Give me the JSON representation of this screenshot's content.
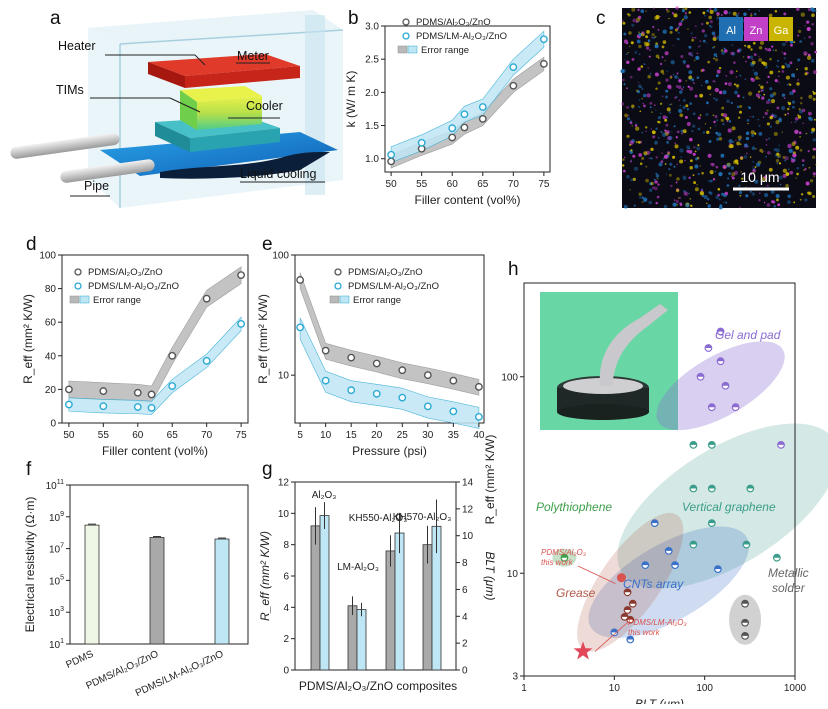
{
  "panels": {
    "a": {
      "letter": "a",
      "labels": {
        "heater": "Heater",
        "meter": "Meter",
        "tims": "TIMs",
        "cooler": "Cooler",
        "liquid": "Liquid cooling",
        "pipe": "Pipe"
      }
    },
    "b": {
      "letter": "b"
    },
    "c": {
      "letter": "c",
      "elements": [
        "Al",
        "Zn",
        "Ga"
      ],
      "element_colors": [
        "#1f6fb2",
        "#c23fc7",
        "#c9b400"
      ],
      "scalebar": "10 μm"
    },
    "d": {
      "letter": "d"
    },
    "e": {
      "letter": "e"
    },
    "f": {
      "letter": "f"
    },
    "g": {
      "letter": "g",
      "xlabel": "PDMS/Al₂O₃/ZnO composites"
    },
    "h": {
      "letter": "h"
    }
  },
  "colors": {
    "gray": "#8c8c8c",
    "cyan": "#2aa9d2",
    "gray_band": "#b9b9b9",
    "cyan_band": "#bfe6f4"
  },
  "chart_data": [
    {
      "id": "b",
      "type": "line",
      "xlabel": "Filler content (vol%)",
      "ylabel": "k (W/ m K)",
      "xlim": [
        49,
        76
      ],
      "ylim": [
        0.8,
        3.0
      ],
      "xticks": [
        50,
        55,
        60,
        65,
        70,
        75
      ],
      "yticks": [
        1.0,
        1.5,
        2.0,
        2.5,
        3.0
      ],
      "legend": [
        "PDMS/Al₂O₃/ZnO",
        "PDMS/LM-Al₂O₃/ZnO",
        "Error range"
      ],
      "series": [
        {
          "name": "PDMS/Al₂O₃/ZnO",
          "x": [
            50,
            55,
            60,
            62,
            65,
            70,
            75
          ],
          "y": [
            0.96,
            1.15,
            1.32,
            1.47,
            1.6,
            2.1,
            2.43
          ],
          "err": 0.1
        },
        {
          "name": "PDMS/LM-Al₂O₃/ZnO",
          "x": [
            50,
            55,
            60,
            62,
            65,
            70,
            75
          ],
          "y": [
            1.06,
            1.24,
            1.46,
            1.67,
            1.78,
            2.38,
            2.8
          ],
          "err": 0.12
        }
      ]
    },
    {
      "id": "d",
      "type": "line",
      "xlabel": "Filler content (vol%)",
      "ylabel": "R_eff (mm² K/W)",
      "xlim": [
        49,
        76
      ],
      "ylim": [
        0,
        100
      ],
      "xticks": [
        50,
        55,
        60,
        65,
        70,
        75
      ],
      "yticks": [
        0,
        20,
        40,
        60,
        80,
        100
      ],
      "legend": [
        "PDMS/Al₂O₃/ZnO",
        "PDMS/LM-Al₂O₃/ZnO",
        "Error range"
      ],
      "series": [
        {
          "name": "PDMS/Al₂O₃/ZnO",
          "x": [
            50,
            55,
            60,
            62,
            65,
            70,
            75
          ],
          "y": [
            20,
            19,
            18,
            17,
            40,
            74,
            88
          ],
          "err": 5
        },
        {
          "name": "PDMS/LM-Al₂O₃/ZnO",
          "x": [
            50,
            55,
            60,
            62,
            65,
            70,
            75
          ],
          "y": [
            11,
            10,
            9.5,
            9,
            22,
            37,
            59
          ],
          "err": 4
        }
      ]
    },
    {
      "id": "e",
      "type": "line",
      "xlabel": "Pressure (psi)",
      "ylabel": "R_eff (mm² K/W)",
      "log_y": true,
      "xlim": [
        4,
        41
      ],
      "ylim": [
        4,
        100
      ],
      "xticks": [
        5,
        10,
        15,
        20,
        25,
        30,
        35,
        40
      ],
      "yticks": [
        10,
        100
      ],
      "legend": [
        "PDMS/Al₂O₃/ZnO",
        "PDMS/LM-Al₂O₃/ZnO",
        "Error range"
      ],
      "series": [
        {
          "name": "PDMS/Al₂O₃/ZnO",
          "x": [
            5,
            10,
            15,
            20,
            25,
            30,
            35,
            40
          ],
          "y": [
            62,
            16,
            14,
            12.5,
            11,
            10,
            9,
            8
          ],
          "err_frac": 0.15
        },
        {
          "name": "PDMS/LM-Al₂O₃/ZnO",
          "x": [
            5,
            10,
            15,
            20,
            25,
            30,
            35,
            40
          ],
          "y": [
            25,
            9,
            7.5,
            7,
            6.5,
            5.5,
            5,
            4.5
          ],
          "err_frac": 0.2
        }
      ]
    },
    {
      "id": "f",
      "type": "bar",
      "categories": [
        "PDMS",
        "PDMS/Al₂O₃/ZnO",
        "PDMS/LM-Al₂O₃/ZnO"
      ],
      "values": [
        300000000.0,
        50000000.0,
        40000000.0
      ],
      "log_y": true,
      "ylabel": "Electrical resistivity (Ω·m)",
      "ylim": [
        10,
        100000000000.0
      ],
      "yticks_exp": [
        1,
        3,
        5,
        7,
        9,
        11
      ],
      "colors": [
        "#eef7e6",
        "#a9a9a9",
        "#bfe6f4"
      ]
    },
    {
      "id": "g",
      "type": "bar",
      "categories": [
        "Al₂O₃",
        "LM-Al₂O₃",
        "KH550-Al₂O₃",
        "KH570-Al₂O₃"
      ],
      "series": [
        {
          "name": "R_eff (mm² K/W)",
          "values": [
            9.2,
            4.1,
            7.6,
            8.0
          ],
          "err": [
            1.2,
            0.6,
            1.0,
            1.2
          ]
        },
        {
          "name": "BLT (μm)",
          "values": [
            11.5,
            4.5,
            10.2,
            10.7
          ],
          "err": [
            1.0,
            0.5,
            1.5,
            2.0
          ]
        }
      ],
      "ylabel": "R_eff (mm² K/W)",
      "y2label": "BLT (μm)",
      "ylim": [
        0,
        12
      ],
      "y2lim": [
        0,
        14
      ],
      "yticks": [
        0,
        2,
        4,
        6,
        8,
        10,
        12
      ],
      "y2ticks": [
        0,
        2,
        4,
        6,
        8,
        10,
        12,
        14
      ]
    },
    {
      "id": "h",
      "type": "scatter",
      "xlabel": "BLT (μm)",
      "ylabel": "R_eff (mm² K/W)",
      "log_x": true,
      "log_y": true,
      "xlim": [
        1,
        1000
      ],
      "ylim": [
        3,
        300
      ],
      "xticks": [
        1,
        10,
        100,
        1000
      ],
      "yticks": [
        3,
        10,
        100
      ],
      "regions": [
        {
          "name": "Gel and pad",
          "color": "#8a6bd1"
        },
        {
          "name": "Vertical graphene",
          "color": "#3a9c8a"
        },
        {
          "name": "Polythiophene",
          "color": "#3fa04b"
        },
        {
          "name": "CNTs array",
          "color": "#3b70c9"
        },
        {
          "name": "Metallic solder",
          "color": "#666666"
        },
        {
          "name": "Grease",
          "color": "#b05a4a"
        }
      ],
      "annotations": [
        {
          "text": "PDMS/Al₂O₃",
          "sub": "this work"
        },
        {
          "text": "PDMS/LM-Al₂O₃",
          "sub": "this work"
        }
      ],
      "points": [
        {
          "group": "gel",
          "x": 150,
          "y": 170
        },
        {
          "group": "gel",
          "x": 110,
          "y": 140
        },
        {
          "group": "gel",
          "x": 150,
          "y": 120
        },
        {
          "group": "gel",
          "x": 90,
          "y": 100
        },
        {
          "group": "gel",
          "x": 170,
          "y": 90
        },
        {
          "group": "gel",
          "x": 120,
          "y": 70
        },
        {
          "group": "gel",
          "x": 220,
          "y": 70
        },
        {
          "group": "gel",
          "x": 700,
          "y": 45
        },
        {
          "group": "vg",
          "x": 75,
          "y": 45
        },
        {
          "group": "vg",
          "x": 120,
          "y": 45
        },
        {
          "group": "vg",
          "x": 75,
          "y": 27
        },
        {
          "group": "vg",
          "x": 120,
          "y": 27
        },
        {
          "group": "vg",
          "x": 320,
          "y": 27
        },
        {
          "group": "vg",
          "x": 120,
          "y": 18
        },
        {
          "group": "vg",
          "x": 75,
          "y": 14
        },
        {
          "group": "vg",
          "x": 290,
          "y": 14
        },
        {
          "group": "vg",
          "x": 630,
          "y": 12
        },
        {
          "group": "poly",
          "x": 2.8,
          "y": 12
        },
        {
          "group": "cnt",
          "x": 28,
          "y": 18
        },
        {
          "group": "cnt",
          "x": 40,
          "y": 13
        },
        {
          "group": "cnt",
          "x": 22,
          "y": 11
        },
        {
          "group": "cnt",
          "x": 47,
          "y": 11
        },
        {
          "group": "cnt",
          "x": 140,
          "y": 10.5
        },
        {
          "group": "cnt",
          "x": 10,
          "y": 5
        },
        {
          "group": "cnt",
          "x": 15,
          "y": 4.6
        },
        {
          "group": "metal",
          "x": 280,
          "y": 7
        },
        {
          "group": "metal",
          "x": 280,
          "y": 5.6
        },
        {
          "group": "metal",
          "x": 280,
          "y": 4.8
        },
        {
          "group": "grease",
          "x": 14,
          "y": 8
        },
        {
          "group": "grease",
          "x": 16,
          "y": 7
        },
        {
          "group": "grease",
          "x": 14,
          "y": 6.5
        },
        {
          "group": "grease",
          "x": 13,
          "y": 6.0
        },
        {
          "group": "grease",
          "x": 15,
          "y": 5.8
        }
      ],
      "this_work": [
        {
          "name": "PDMS/Al₂O₃",
          "x": 12,
          "y": 9.5
        },
        {
          "name": "PDMS/LM-Al₂O₃",
          "x": 4.5,
          "y": 4.0
        }
      ]
    }
  ]
}
